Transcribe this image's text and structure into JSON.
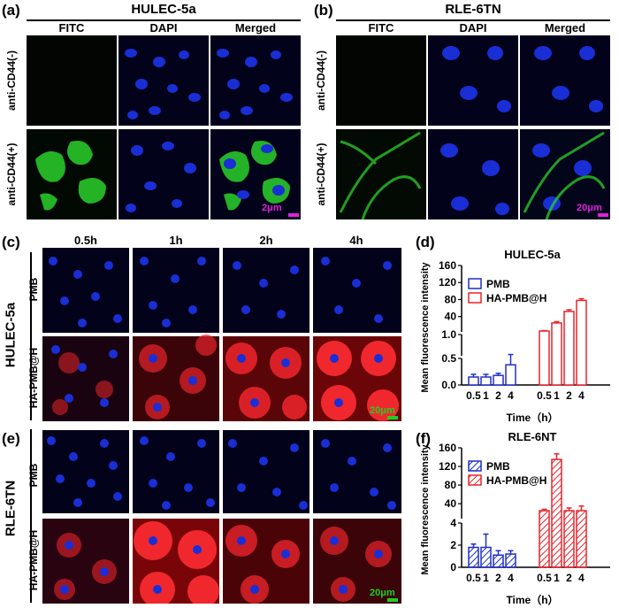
{
  "panels": {
    "a": {
      "letter": "(a)",
      "title": "HULEC-5a",
      "cols": [
        "FITC",
        "DAPI",
        "Merged"
      ],
      "rows": [
        "anti-CD44(-)",
        "anti-CD44(+)"
      ],
      "scale": "2μm"
    },
    "b": {
      "letter": "(b)",
      "title": "RLE-6TN",
      "cols": [
        "FITC",
        "DAPI",
        "Merged"
      ],
      "rows": [
        "anti-CD44(-)",
        "anti-CD44(+)"
      ],
      "scale": "20μm"
    },
    "c": {
      "letter": "(c)",
      "cell_line": "HULEC-5a",
      "cols": [
        "0.5h",
        "1h",
        "2h",
        "4h"
      ],
      "rows": [
        "PMB",
        "HA-PMB@H"
      ],
      "scale": "20μm"
    },
    "d": {
      "letter": "(d)"
    },
    "e": {
      "letter": "(e)",
      "cell_line": "RLE-6TN",
      "rows": [
        "PMB",
        "HA-PMB@H"
      ],
      "scale": "20μm"
    },
    "f": {
      "letter": "(f)"
    }
  },
  "colors": {
    "dapi": "#1a2ed6",
    "fitc": "#2bd12b",
    "red": "#e8242b",
    "blue_series": "#1f2fc9",
    "red_series": "#e8242b"
  },
  "chart_data": [
    {
      "type": "bar",
      "panel": "d",
      "title": "HULEC-5a",
      "xlabel": "Time（h）",
      "ylabel": "Mean fluorescence intensity",
      "categories": [
        "0.5",
        "1",
        "2",
        "4"
      ],
      "axis": "broken",
      "yticks_upper": [
        40,
        80,
        120,
        160
      ],
      "yticks_middle": [
        1.0
      ],
      "yticks_lower": [
        0.0,
        0.5
      ],
      "series": [
        {
          "name": "PMB",
          "values": [
            0.15,
            0.15,
            0.18,
            0.38
          ],
          "errors": [
            0.05,
            0.05,
            0.04,
            0.15
          ]
        },
        {
          "name": "HA-PMB@H",
          "values": [
            6,
            25,
            52,
            78
          ],
          "errors": [
            1,
            3,
            4,
            4
          ]
        }
      ]
    },
    {
      "type": "bar",
      "panel": "f",
      "title": "RLE-6NT",
      "xlabel": "Time（h）",
      "ylabel": "Mean fluorescence intensity",
      "categories": [
        "0.5",
        "1",
        "2",
        "4"
      ],
      "axis": "broken",
      "yticks_upper": [
        40,
        80,
        120,
        160
      ],
      "yticks_lower": [
        0,
        2,
        4
      ],
      "series": [
        {
          "name": "PMB",
          "values": [
            1.8,
            1.8,
            1.1,
            1.2
          ],
          "errors": [
            0.3,
            1.2,
            0.4,
            0.3
          ]
        },
        {
          "name": "HA-PMB@H",
          "values": [
            25,
            135,
            25,
            25
          ],
          "errors": [
            3,
            12,
            6,
            10
          ]
        }
      ]
    }
  ]
}
